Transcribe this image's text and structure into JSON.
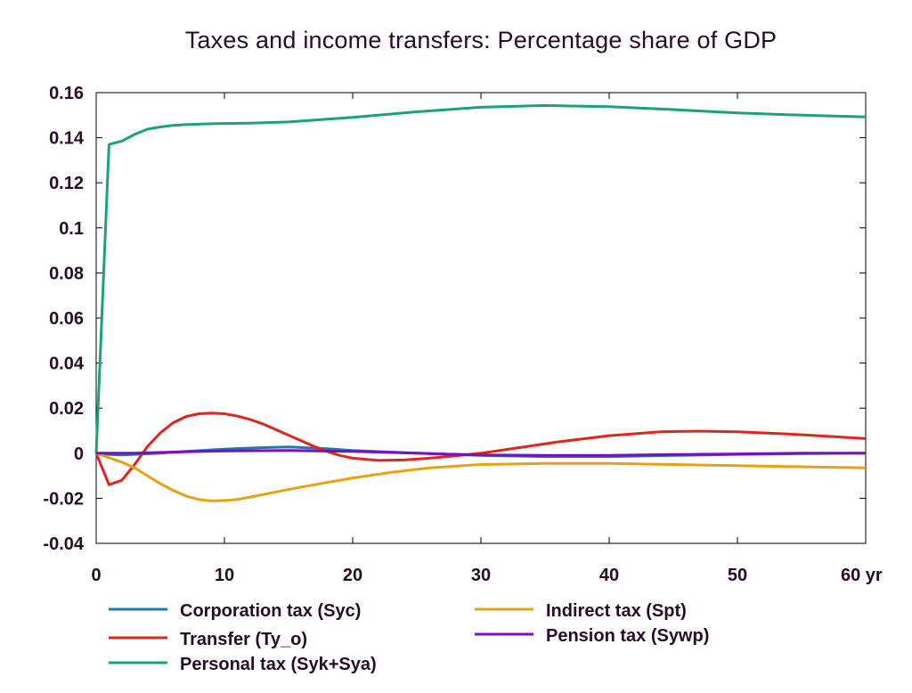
{
  "chart_data": {
    "type": "line",
    "title": "Taxes and income transfers: Percentage share of GDP",
    "xlabel": "",
    "ylabel": "",
    "x_unit_label": "yr",
    "xlim": [
      0,
      60
    ],
    "ylim": [
      -0.04,
      0.16
    ],
    "xticks": [
      0,
      10,
      20,
      30,
      40,
      50,
      60
    ],
    "xtick_labels": [
      "0",
      "10",
      "20",
      "30",
      "40",
      "50",
      "60 yr"
    ],
    "yticks": [
      -0.04,
      -0.02,
      0,
      0.02,
      0.04,
      0.06,
      0.08,
      0.1,
      0.12,
      0.14,
      0.16
    ],
    "ytick_labels": [
      "-0.04",
      "-0.02",
      "0",
      "0.02",
      "0.04",
      "0.06",
      "0.08",
      "0.1",
      "0.12",
      "0.14",
      "0.16"
    ],
    "grid": false,
    "legend_position": "bottom",
    "series": [
      {
        "name": "Corporation tax (Syc)",
        "color": "#1f77b4",
        "x": [
          0,
          1,
          2,
          3,
          5,
          7,
          10,
          13,
          15,
          18,
          20,
          25,
          30,
          35,
          40,
          45,
          50,
          55,
          60
        ],
        "y": [
          0,
          -0.0005,
          -0.0008,
          -0.0005,
          0,
          0.0008,
          0.0018,
          0.0025,
          0.0028,
          0.002,
          0.0012,
          0,
          -0.001,
          -0.0015,
          -0.0015,
          -0.001,
          -0.0005,
          -0.0002,
          0
        ]
      },
      {
        "name": "Transfer (Ty_o)",
        "color": "#e0251c",
        "x": [
          0,
          1,
          2,
          3,
          4,
          5,
          6,
          7,
          8,
          9,
          10,
          11,
          12,
          13,
          14,
          15,
          16,
          17,
          18,
          19,
          20,
          22,
          24,
          26,
          28,
          30,
          33,
          36,
          40,
          44,
          47,
          50,
          54,
          57,
          60
        ],
        "y": [
          0,
          -0.014,
          -0.012,
          -0.005,
          0.003,
          0.009,
          0.0135,
          0.0163,
          0.0175,
          0.0178,
          0.0175,
          0.0165,
          0.015,
          0.013,
          0.0105,
          0.008,
          0.0055,
          0.003,
          0.0008,
          -0.001,
          -0.0022,
          -0.0032,
          -0.003,
          -0.0022,
          -0.0012,
          0,
          0.0025,
          0.005,
          0.0078,
          0.0095,
          0.0098,
          0.0095,
          0.0085,
          0.0075,
          0.0065
        ]
      },
      {
        "name": "Personal tax (Syk+Sya)",
        "color": "#1aa37a",
        "x": [
          0,
          1,
          2,
          3,
          4,
          5,
          6,
          7,
          9,
          12,
          15,
          20,
          25,
          30,
          35,
          40,
          45,
          50,
          55,
          60
        ],
        "y": [
          0,
          0.137,
          0.1385,
          0.1415,
          0.1438,
          0.1448,
          0.1455,
          0.1458,
          0.1462,
          0.1465,
          0.147,
          0.149,
          0.1515,
          0.1535,
          0.1543,
          0.1538,
          0.1525,
          0.151,
          0.15,
          0.1492
        ]
      },
      {
        "name": "Indirect tax (Spt)",
        "color": "#e6a20f",
        "x": [
          0,
          1,
          2,
          3,
          4,
          5,
          6,
          7,
          8,
          9,
          10,
          11,
          12,
          14,
          16,
          18,
          20,
          23,
          26,
          30,
          35,
          40,
          45,
          50,
          55,
          60
        ],
        "y": [
          0,
          -0.002,
          -0.004,
          -0.0065,
          -0.01,
          -0.0135,
          -0.0165,
          -0.019,
          -0.0205,
          -0.0212,
          -0.021,
          -0.0205,
          -0.0195,
          -0.0172,
          -0.015,
          -0.013,
          -0.011,
          -0.0085,
          -0.0065,
          -0.005,
          -0.0045,
          -0.0045,
          -0.005,
          -0.0055,
          -0.006,
          -0.0065
        ]
      },
      {
        "name": "Pension tax (Sywp)",
        "color": "#7a0fbf",
        "x": [
          0,
          3,
          6,
          10,
          15,
          20,
          25,
          30,
          35,
          40,
          45,
          50,
          55,
          60
        ],
        "y": [
          0,
          0,
          0.0005,
          0.001,
          0.0012,
          0.0008,
          0,
          -0.0008,
          -0.001,
          -0.001,
          -0.0006,
          -0.0003,
          0,
          0
        ]
      }
    ],
    "legend": [
      {
        "label": "Corporation tax (Syc)",
        "color": "#1f77b4"
      },
      {
        "label": "Indirect tax (Spt)",
        "color": "#e6a20f"
      },
      {
        "label": "Transfer (Ty_o)",
        "color": "#e0251c"
      },
      {
        "label": "Pension tax (Sywp)",
        "color": "#7a0fbf"
      },
      {
        "label": "Personal tax (Syk+Sya)",
        "color": "#1aa37a"
      }
    ]
  }
}
